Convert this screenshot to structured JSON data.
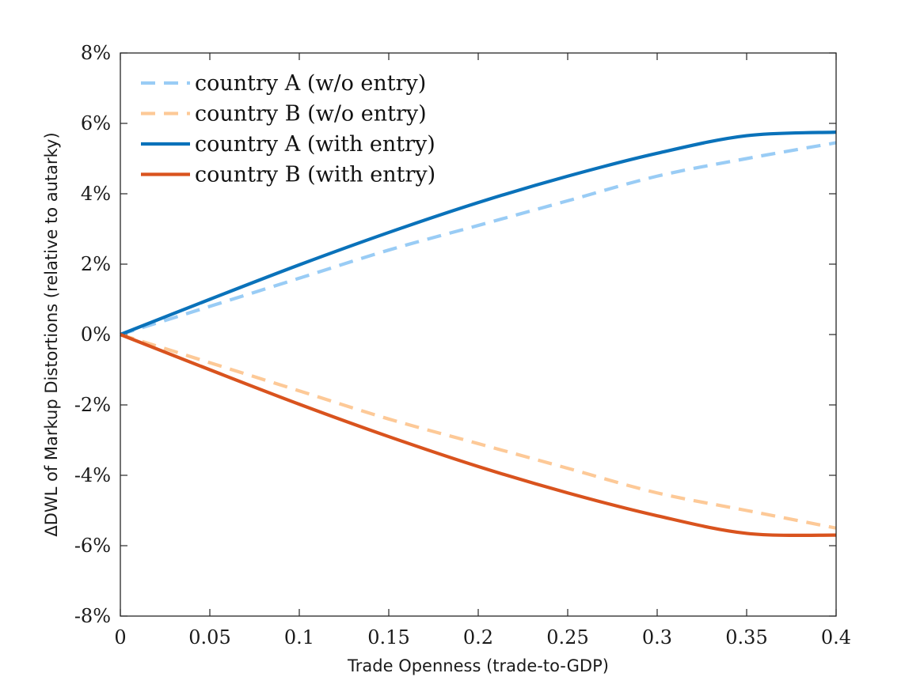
{
  "chart_data": {
    "type": "line",
    "xlabel": "Trade Openness (trade-to-GDP)",
    "ylabel": "ΔDWL of Markup Distortions (relative to autarky)",
    "xlim": [
      0,
      0.4
    ],
    "ylim": [
      -8,
      8
    ],
    "x_ticks": [
      0,
      0.05,
      0.1,
      0.15,
      0.2,
      0.25,
      0.3,
      0.35,
      0.4
    ],
    "x_tick_labels": [
      "0",
      "0.05",
      "0.1",
      "0.15",
      "0.2",
      "0.25",
      "0.3",
      "0.35",
      "0.4"
    ],
    "y_ticks": [
      -8,
      -6,
      -4,
      -2,
      0,
      2,
      4,
      6,
      8
    ],
    "y_tick_labels": [
      "-8%",
      "-6%",
      "-4%",
      "-2%",
      "0%",
      "2%",
      "4%",
      "6%",
      "8%"
    ],
    "grid": false,
    "legend_position": "top-left",
    "x": [
      0,
      0.05,
      0.1,
      0.15,
      0.2,
      0.25,
      0.3,
      0.35,
      0.4
    ],
    "series": [
      {
        "name": "country A (w/o entry)",
        "style": "dashed",
        "color": "#99ccf5",
        "values": [
          0,
          0.8,
          1.6,
          2.4,
          3.1,
          3.8,
          4.5,
          5.0,
          5.45
        ]
      },
      {
        "name": "country B (w/o entry)",
        "style": "dashed",
        "color": "#fdc997",
        "values": [
          0,
          -0.8,
          -1.6,
          -2.4,
          -3.1,
          -3.8,
          -4.5,
          -5.0,
          -5.5
        ]
      },
      {
        "name": "country A (with entry)",
        "style": "solid",
        "color": "#0a72ba",
        "values": [
          0,
          1.0,
          1.98,
          2.9,
          3.75,
          4.5,
          5.15,
          5.65,
          5.75
        ]
      },
      {
        "name": "country B (with entry)",
        "style": "solid",
        "color": "#d9531e",
        "values": [
          0,
          -1.0,
          -1.98,
          -2.9,
          -3.75,
          -4.5,
          -5.15,
          -5.65,
          -5.7
        ]
      }
    ]
  }
}
